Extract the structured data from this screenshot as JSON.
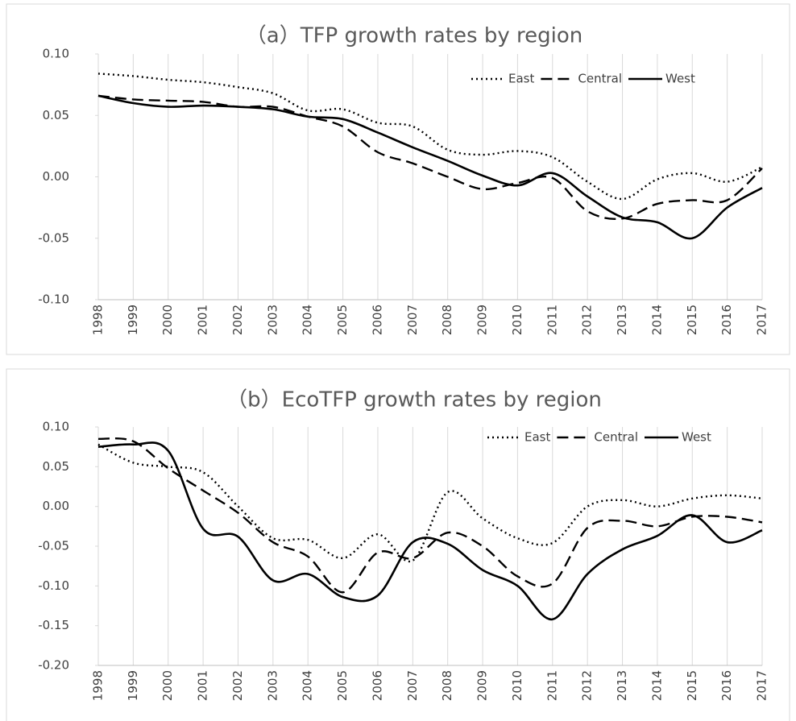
{
  "chart_data": [
    {
      "type": "line",
      "title": "（a）TFP growth rates by region",
      "categories": [
        "1998",
        "1999",
        "2000",
        "2001",
        "2002",
        "2003",
        "2004",
        "2005",
        "2006",
        "2007",
        "2008",
        "2009",
        "2010",
        "2011",
        "2012",
        "2013",
        "2014",
        "2015",
        "2016",
        "2017"
      ],
      "ylim": [
        -0.1,
        0.1
      ],
      "yticks": [
        {
          "value": -0.1,
          "label": "-0.10"
        },
        -0.05,
        {
          "value": 0,
          "label": "0.00"
        },
        0.05,
        {
          "value": 0.1,
          "label": "0.10"
        }
      ],
      "legend": "upper right",
      "series": [
        {
          "name": "East",
          "color": "#000000",
          "style": "dotted",
          "values": [
            0.084,
            0.082,
            0.079,
            0.077,
            0.073,
            0.068,
            0.054,
            0.055,
            0.044,
            0.041,
            0.022,
            0.018,
            0.021,
            0.016,
            -0.004,
            -0.018,
            -0.002,
            0.003,
            -0.004,
            0.008
          ]
        },
        {
          "name": "Central",
          "color": "#000000",
          "style": "dashed",
          "values": [
            0.066,
            0.063,
            0.062,
            0.061,
            0.057,
            0.057,
            0.049,
            0.041,
            0.02,
            0.011,
            0.0,
            -0.01,
            -0.005,
            -0.001,
            -0.028,
            -0.034,
            -0.022,
            -0.019,
            -0.019,
            0.007
          ]
        },
        {
          "name": "West",
          "color": "#000000",
          "style": "solid",
          "values": [
            0.066,
            0.06,
            0.057,
            0.058,
            0.057,
            0.055,
            0.049,
            0.047,
            0.036,
            0.024,
            0.013,
            0.001,
            -0.007,
            0.003,
            -0.016,
            -0.033,
            -0.037,
            -0.05,
            -0.025,
            -0.009
          ]
        }
      ]
    },
    {
      "type": "line",
      "title": "（b）EcoTFP growth rates by region",
      "categories": [
        "1998",
        "1999",
        "2000",
        "2001",
        "2002",
        "2003",
        "2004",
        "2005",
        "2006",
        "2007",
        "2008",
        "2009",
        "2010",
        "2011",
        "2012",
        "2013",
        "2014",
        "2015",
        "2016",
        "2017"
      ],
      "ylim": [
        -0.2,
        0.1
      ],
      "yticks": [
        {
          "value": -0.2,
          "label": "-0.20"
        },
        {
          "value": -0.15,
          "label": "-0.15"
        },
        {
          "value": -0.1,
          "label": "-0.10"
        },
        -0.05,
        {
          "value": 0,
          "label": "0.00"
        },
        0.05,
        {
          "value": 0.1,
          "label": "0.10"
        }
      ],
      "legend": "upper right",
      "series": [
        {
          "name": "East",
          "color": "#000000",
          "style": "dotted",
          "values": [
            0.078,
            0.055,
            0.05,
            0.043,
            0.0,
            -0.04,
            -0.042,
            -0.065,
            -0.035,
            -0.068,
            0.018,
            -0.015,
            -0.04,
            -0.046,
            0.0,
            0.008,
            0.0,
            0.01,
            0.014,
            0.01
          ]
        },
        {
          "name": "Central",
          "color": "#000000",
          "style": "dashed",
          "values": [
            0.085,
            0.082,
            0.048,
            0.02,
            -0.008,
            -0.045,
            -0.063,
            -0.108,
            -0.058,
            -0.065,
            -0.033,
            -0.05,
            -0.088,
            -0.097,
            -0.027,
            -0.018,
            -0.025,
            -0.013,
            -0.013,
            -0.02
          ]
        },
        {
          "name": "West",
          "color": "#000000",
          "style": "solid",
          "values": [
            0.075,
            0.078,
            0.07,
            -0.028,
            -0.038,
            -0.093,
            -0.085,
            -0.114,
            -0.112,
            -0.045,
            -0.047,
            -0.08,
            -0.1,
            -0.142,
            -0.085,
            -0.054,
            -0.037,
            -0.011,
            -0.045,
            -0.03
          ]
        }
      ]
    }
  ]
}
